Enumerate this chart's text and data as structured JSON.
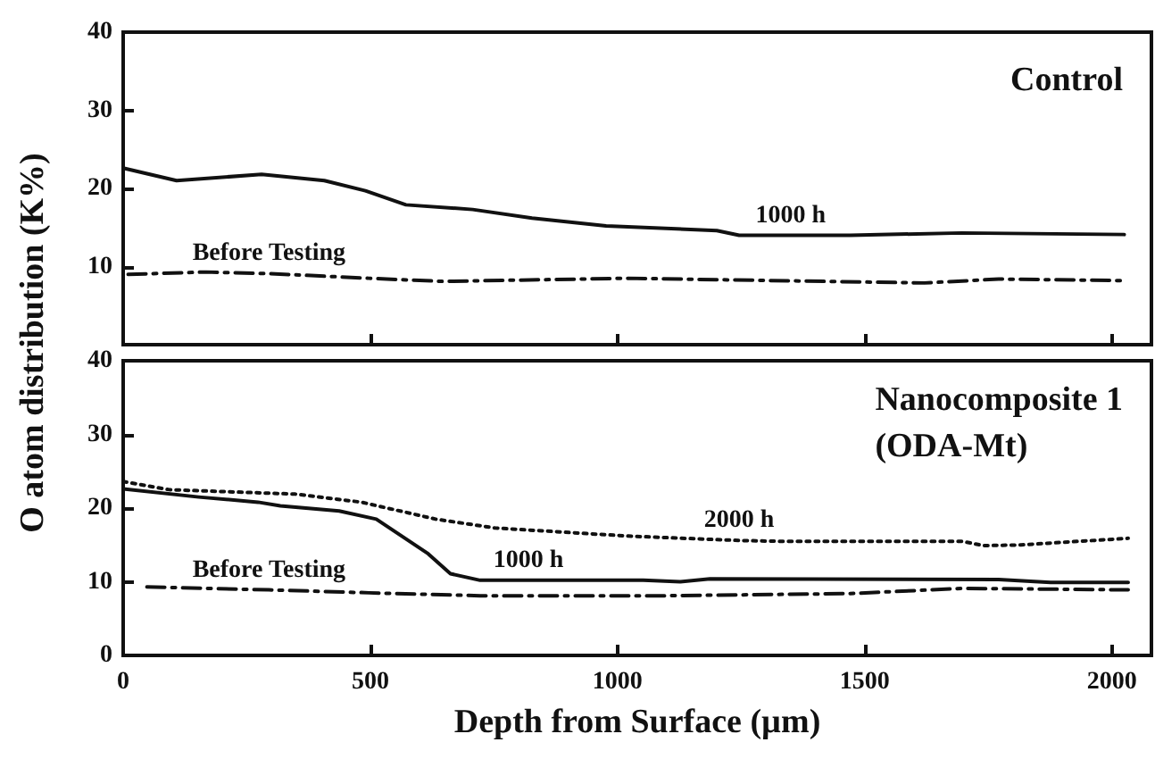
{
  "chart_data": [
    {
      "type": "line",
      "title": "Control",
      "ylabel": "O atom distribution (K%)",
      "xlim": [
        0,
        2080
      ],
      "xticks": [
        0,
        500,
        1000,
        1500,
        2000
      ],
      "ylim": [
        0,
        40
      ],
      "yticks": [
        10,
        20,
        30,
        40
      ],
      "tick_labels": "y",
      "grid": false,
      "marker": "none",
      "series": [
        {
          "color": "#111111",
          "line_style": "solid",
          "x": [
            0,
            108,
            280,
            407,
            490,
            572,
            707,
            827,
            977,
            1201,
            1246,
            1350,
            1471,
            1696,
            2025
          ],
          "values": [
            22.6,
            21.0,
            21.8,
            21.0,
            19.7,
            17.9,
            17.3,
            16.2,
            15.2,
            14.6,
            14.0,
            14.0,
            14.0,
            14.3,
            14.1
          ]
        },
        {
          "color": "#111111",
          "line_style": "dashed",
          "x": [
            10,
            168,
            295,
            497,
            647,
            1022,
            1621,
            1771,
            2025
          ],
          "values": [
            9.0,
            9.3,
            9.1,
            8.5,
            8.1,
            8.5,
            7.9,
            8.4,
            8.2
          ]
        }
      ],
      "annotations": [
        {
          "text": "1000 h",
          "x": 1350,
          "y": 14.0
        },
        {
          "text": "Before Testing",
          "x": 295,
          "y": 9.1
        }
      ]
    },
    {
      "type": "line",
      "title": "Nanocomposite 1\n(ODA-Mt)",
      "xlabel": "Depth from Surface (µm)",
      "xlim": [
        0,
        2080
      ],
      "xticks": [
        0,
        500,
        1000,
        1500,
        2000
      ],
      "ylim": [
        0,
        40
      ],
      "yticks": [
        0,
        10,
        20,
        30,
        40
      ],
      "grid": false,
      "marker": "none",
      "series": [
        {
          "color": "#111111",
          "line_style": "solid",
          "x": [
            0,
            153,
            273,
            318,
            437,
            512,
            617,
            662,
            722,
            820,
            1052,
            1127,
            1187,
            1771,
            1876,
            2033
          ],
          "values": [
            22.6,
            21.5,
            20.8,
            20.3,
            19.6,
            18.5,
            13.8,
            11.1,
            10.2,
            10.2,
            10.2,
            10.0,
            10.4,
            10.3,
            9.9,
            9.9
          ]
        },
        {
          "color": "#111111",
          "line_style": "dotted",
          "x": [
            0,
            93,
            348,
            482,
            632,
            752,
            1022,
            1246,
            1321,
            1696,
            1741,
            1816,
            2033
          ],
          "values": [
            23.6,
            22.5,
            21.9,
            20.8,
            18.5,
            17.3,
            16.2,
            15.6,
            15.5,
            15.5,
            14.9,
            15.0,
            15.9
          ]
        },
        {
          "color": "#111111",
          "line_style": "dashed",
          "x": [
            48,
            295,
            497,
            722,
            1097,
            1471,
            1696,
            2033
          ],
          "values": [
            9.3,
            8.9,
            8.5,
            8.1,
            8.1,
            8.4,
            9.1,
            8.9
          ]
        }
      ],
      "annotations": [
        {
          "text": "2000 h",
          "x": 1246,
          "y": 15.6
        },
        {
          "text": "1000 h",
          "x": 820,
          "y": 10.2
        },
        {
          "text": "Before Testing",
          "x": 295,
          "y": 8.9
        }
      ]
    }
  ]
}
